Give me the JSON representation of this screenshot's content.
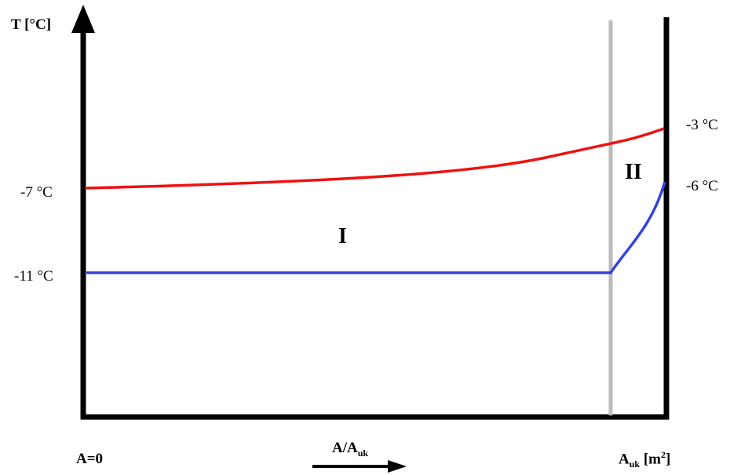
{
  "diagram": {
    "y_axis_label": "T [°C]",
    "x_axis_label": {
      "main": "A/A",
      "sub": "uk"
    },
    "x_start_label": "A=0",
    "x_end_label": {
      "main": "A",
      "sub": "uk",
      "unit_open": " [m",
      "sup": "2",
      "unit_close": "]"
    },
    "regions": {
      "I": "I",
      "II": "II"
    },
    "temperatures": {
      "hot_inlet": "-7 °C",
      "hot_outlet": "-3 °C",
      "cold_flat": "-11 °C",
      "cold_outlet": "-6 °C"
    },
    "curves": {
      "hot": {
        "name": "red-curve",
        "color": "#ee1111"
      },
      "cold": {
        "name": "blue-curve",
        "color": "#3344dd"
      }
    },
    "divider_color": "#bbbbbb",
    "axis_color": "#000000"
  }
}
